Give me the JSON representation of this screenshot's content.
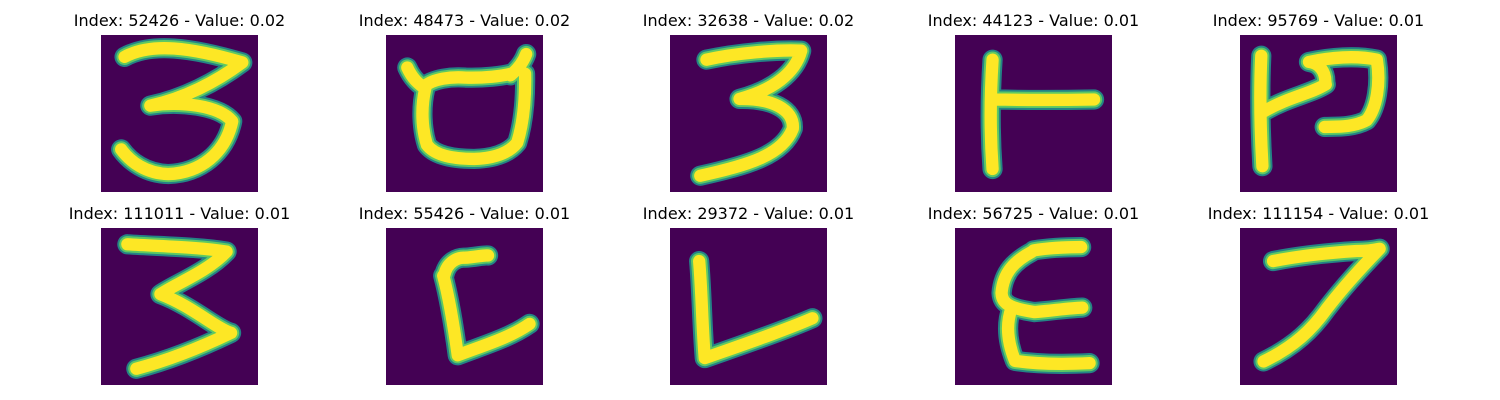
{
  "colors": {
    "background": "#440154",
    "stroke_edge": "#21918c",
    "stroke_mid": "#5ec962",
    "stroke_core": "#fde725"
  },
  "panels": [
    {
      "title": "Index: 52426 - Value: 0.02",
      "glyph": "3"
    },
    {
      "title": "Index: 48473 - Value: 0.02",
      "glyph": "bucket"
    },
    {
      "title": "Index: 32638 - Value: 0.02",
      "glyph": "3"
    },
    {
      "title": "Index: 44123 - Value: 0.01",
      "glyph": "T-rotated"
    },
    {
      "title": "Index: 95769 - Value: 0.01",
      "glyph": "P-mirrored"
    },
    {
      "title": "Index: 111011 - Value: 0.01",
      "glyph": "3"
    },
    {
      "title": "Index: 55426 - Value: 0.01",
      "glyph": "L-curved"
    },
    {
      "title": "Index: 29372 - Value: 0.01",
      "glyph": "L"
    },
    {
      "title": "Index: 56725 - Value: 0.01",
      "glyph": "E"
    },
    {
      "title": "Index: 111154 - Value: 0.01",
      "glyph": "7"
    }
  ]
}
